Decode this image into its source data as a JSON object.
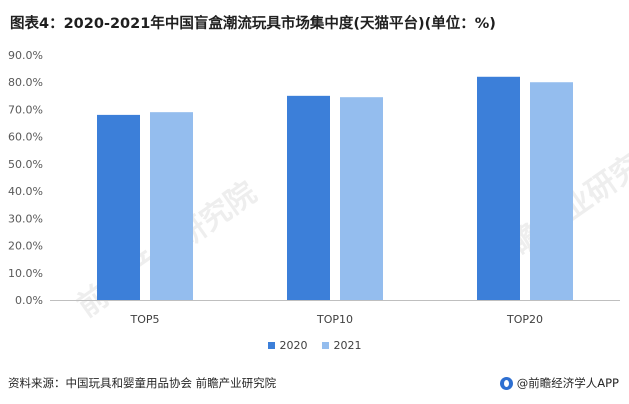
{
  "title": "图表4：2020-2021年中国盲盒潮流玩具市场集中度(天猫平台)(单位：%)",
  "footer": {
    "source": "资料来源：中国玩具和婴童用品协会 前瞻产业研究院",
    "brand": "@前瞻经济学人APP"
  },
  "colors": {
    "series_2020": "#3c7fd9",
    "series_2021": "#94bdee"
  },
  "chart_data": {
    "type": "bar",
    "categories": [
      "TOP5",
      "TOP10",
      "TOP20"
    ],
    "series": [
      {
        "name": "2020",
        "values": [
          68.0,
          75.0,
          82.0
        ]
      },
      {
        "name": "2021",
        "values": [
          69.0,
          74.5,
          80.0
        ]
      }
    ],
    "ylim": [
      0,
      90
    ],
    "yticks": [
      "0.0%",
      "10.0%",
      "20.0%",
      "30.0%",
      "40.0%",
      "50.0%",
      "60.0%",
      "70.0%",
      "80.0%",
      "90.0%"
    ],
    "grid": false,
    "legend_position": "bottom"
  }
}
